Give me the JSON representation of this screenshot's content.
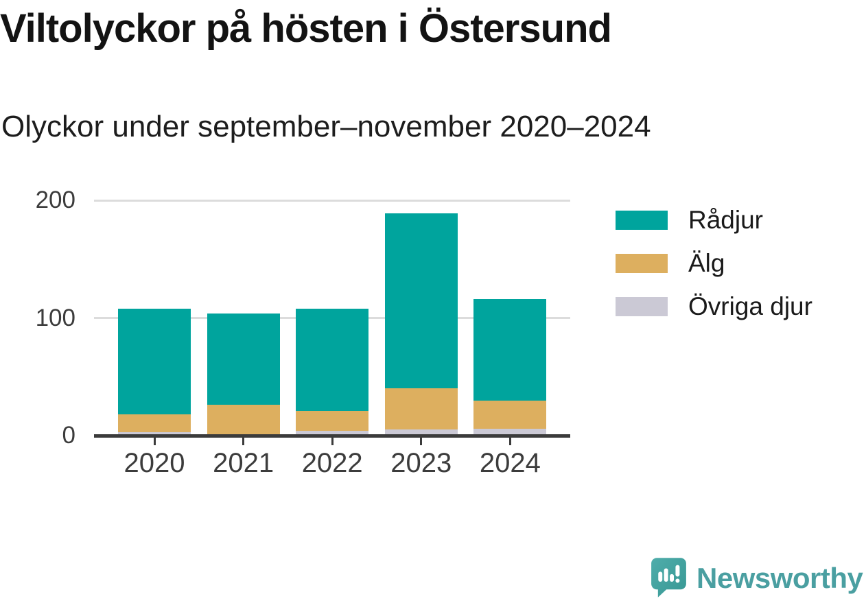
{
  "title": "Viltolyckor på hösten i Östersund",
  "subtitle": "Olyckor under september–november 2020–2024",
  "chart_data": {
    "type": "bar",
    "stacked": true,
    "title": "Viltolyckor på hösten i Östersund",
    "subtitle": "Olyckor under september–november 2020–2024",
    "categories": [
      "2020",
      "2021",
      "2022",
      "2023",
      "2024"
    ],
    "series": [
      {
        "name": "Rådjur",
        "color": "#00a49d",
        "values": [
          90,
          78,
          87,
          149,
          86
        ]
      },
      {
        "name": "Älg",
        "color": "#ddaf5f",
        "values": [
          15,
          25,
          17,
          35,
          24
        ]
      },
      {
        "name": "Övriga djur",
        "color": "#cbc9d5",
        "values": [
          3,
          1,
          4,
          5,
          6
        ]
      }
    ],
    "stack_bottom_to_top": [
      "Övriga djur",
      "Älg",
      "Rådjur"
    ],
    "totals": [
      108,
      104,
      108,
      189,
      116
    ],
    "xlabel": "",
    "ylabel": "",
    "y_ticks": [
      0,
      100,
      200
    ],
    "ylim": [
      0,
      212
    ],
    "grid": "horizontal",
    "legend_position": "right"
  },
  "legend": {
    "items": [
      {
        "label": "Rådjur",
        "color": "#00a49d"
      },
      {
        "label": "Älg",
        "color": "#ddaf5f"
      },
      {
        "label": "Övriga djur",
        "color": "#cbc9d5"
      }
    ]
  },
  "branding": {
    "logo_text": "Newsworthy",
    "logo_icon": "newsworthy-speech-bubble-chart-icon",
    "logo_color": "#4a9fa1",
    "icon_color": "#44a5a1"
  },
  "colors": {
    "axis": "#3b3b3b",
    "gridline": "#dcdcdc",
    "tick_label": "#3c3c3c",
    "title_text": "#131313",
    "background": "#ffffff"
  }
}
